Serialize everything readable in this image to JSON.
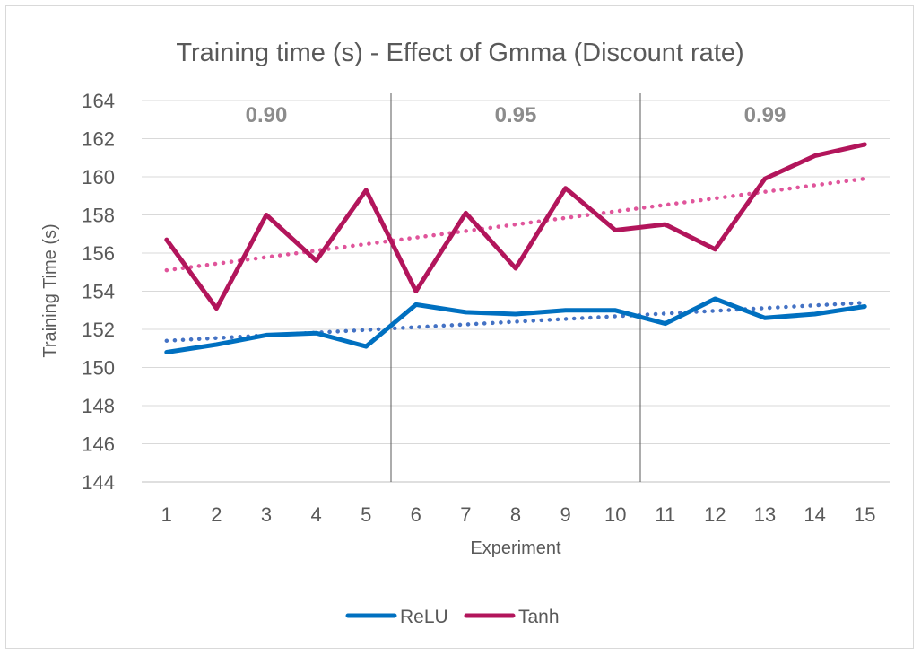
{
  "chart_data": {
    "type": "line",
    "title": "Training time (s) - Effect of Gmma (Discount rate)",
    "xlabel": "Experiment",
    "ylabel": "Training Time (s)",
    "categories": [
      "1",
      "2",
      "3",
      "4",
      "5",
      "6",
      "7",
      "8",
      "9",
      "10",
      "11",
      "12",
      "13",
      "14",
      "15"
    ],
    "ylim": [
      144,
      164
    ],
    "yticks": [
      144,
      146,
      148,
      150,
      152,
      154,
      156,
      158,
      160,
      162,
      164
    ],
    "grid": true,
    "legend_position": "bottom",
    "series": [
      {
        "name": "ReLU",
        "color": "#0070c0",
        "values": [
          150.8,
          151.2,
          151.7,
          151.8,
          151.1,
          153.3,
          152.9,
          152.8,
          153.0,
          153.0,
          152.3,
          153.6,
          152.6,
          152.8,
          153.2
        ],
        "trendline": {
          "style": "dotted",
          "color": "#4472c4",
          "start": 151.4,
          "end": 153.4
        }
      },
      {
        "name": "Tanh",
        "color": "#b2155b",
        "values": [
          156.7,
          153.1,
          158.0,
          155.6,
          159.3,
          154.0,
          158.1,
          155.2,
          159.4,
          157.2,
          157.5,
          156.2,
          159.9,
          161.1,
          161.7
        ],
        "trendline": {
          "style": "dotted",
          "color": "#e0559b",
          "start": 155.1,
          "end": 159.9
        }
      }
    ],
    "dividers_after": [
      5,
      10
    ],
    "section_labels": [
      {
        "label": "0.90",
        "center": 3
      },
      {
        "label": "0.95",
        "center": 8
      },
      {
        "label": "0.99",
        "center": 13
      }
    ]
  }
}
